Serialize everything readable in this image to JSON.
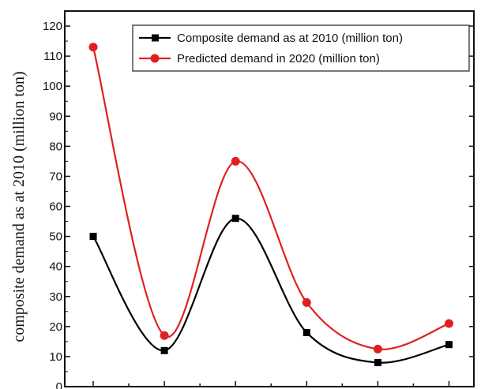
{
  "chart_data": {
    "type": "line",
    "title": "",
    "xlabel": "",
    "ylabel": "composite demand as at  2010 (million ton)",
    "ylim": [
      0,
      125
    ],
    "yticks": [
      0,
      10,
      20,
      30,
      40,
      50,
      60,
      70,
      80,
      90,
      100,
      110,
      120
    ],
    "x": [
      1,
      2,
      3,
      4,
      5,
      6
    ],
    "xlim": [
      0.6,
      6.35
    ],
    "grid": false,
    "legend_position": "top-right",
    "series": [
      {
        "name": "Composite demand as at 2010 (million ton)",
        "color": "#000000",
        "marker": "square",
        "values": [
          50,
          12,
          56,
          18,
          8,
          14
        ]
      },
      {
        "name": "Predicted demand in 2020 (million ton)",
        "color": "#e02020",
        "marker": "circle",
        "values": [
          113,
          17,
          75,
          28,
          12.5,
          21
        ]
      }
    ]
  }
}
